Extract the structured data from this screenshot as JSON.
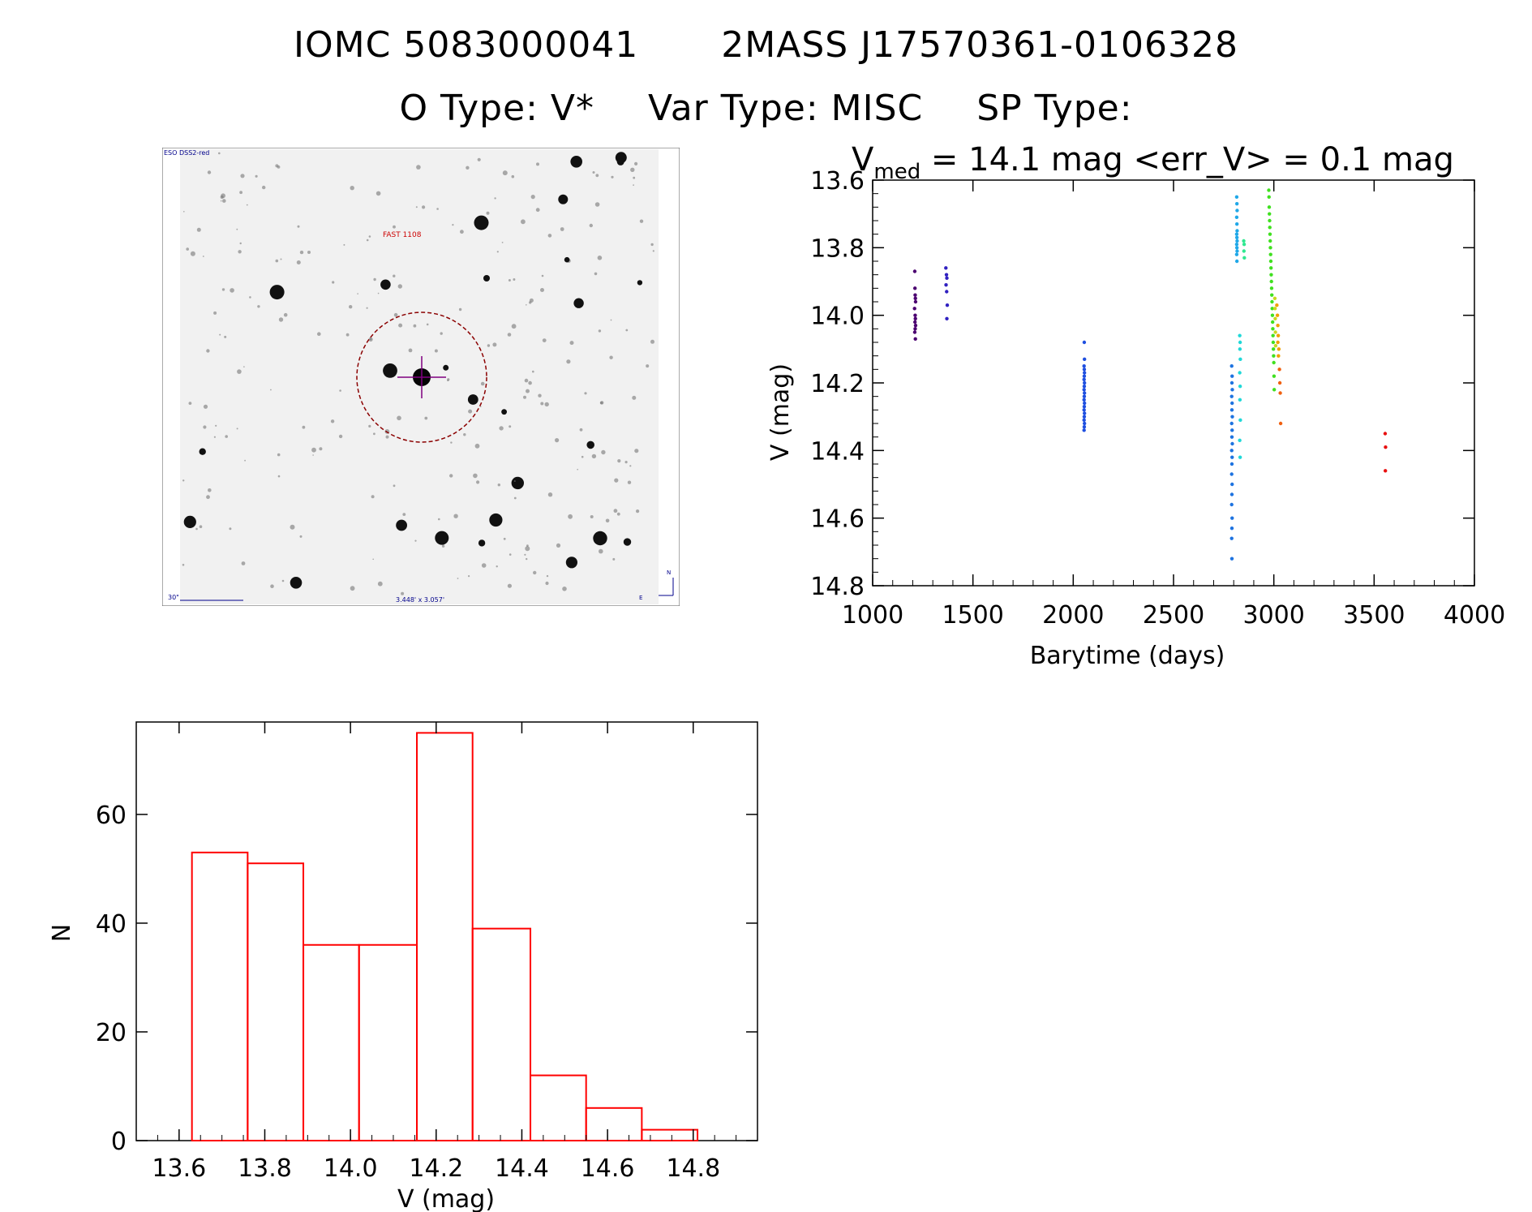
{
  "header": {
    "object_id": "IOMC 5083000041",
    "catalog_id": "2MASS J17570361-0106328",
    "object_type": "O Type: V*",
    "var_type": "Var Type: MISC",
    "sp_type": "SP Type:"
  },
  "image_panel": {
    "survey_label": "ESO DSS2-red",
    "source_label": "FAST 1108",
    "scale_label": "30\"",
    "size_label": "3.448' x 3.057'",
    "north_label": "N",
    "east_label": "E",
    "circle_color": "#8b0000",
    "cross_color": "#800080",
    "label_color": "#cc0000",
    "annot_color": "#00008b"
  },
  "chart_data": [
    {
      "type": "scatter",
      "title_v": "V",
      "title_sub": "med",
      "title_rest": " = 14.1 mag <err_V> = 0.1 mag",
      "xlabel": "Barytime (days)",
      "ylabel": "V (mag)",
      "xlim": [
        1000,
        4000
      ],
      "ylim": [
        14.8,
        13.6
      ],
      "xticks": [
        "1000",
        "1500",
        "2000",
        "2500",
        "3000",
        "3500",
        "4000"
      ],
      "yticks": [
        "13.6",
        "13.8",
        "14.0",
        "14.2",
        "14.4",
        "14.6",
        "14.8"
      ],
      "series": [
        {
          "color": "#4b0070",
          "x": [
            1210,
            1211,
            1212,
            1213,
            1214,
            1209,
            1212,
            1213,
            1211,
            1214,
            1212,
            1210,
            1213
          ],
          "y": [
            13.87,
            13.92,
            13.94,
            13.95,
            13.96,
            13.98,
            14.0,
            14.01,
            14.02,
            14.03,
            14.04,
            14.05,
            14.07
          ]
        },
        {
          "color": "#3020c0",
          "x": [
            1365,
            1368,
            1370,
            1366,
            1369,
            1372,
            1370
          ],
          "y": [
            13.86,
            13.88,
            13.89,
            13.91,
            13.93,
            13.97,
            14.01
          ]
        },
        {
          "color": "#1f4fe0",
          "x": [
            2055,
            2056,
            2054,
            2055,
            2056,
            2055,
            2054,
            2056,
            2055,
            2054,
            2056,
            2055,
            2054,
            2056,
            2055,
            2054,
            2056,
            2055,
            2054,
            2056,
            2055,
            2054
          ],
          "y": [
            14.08,
            14.13,
            14.15,
            14.16,
            14.17,
            14.18,
            14.19,
            14.2,
            14.21,
            14.22,
            14.23,
            14.24,
            14.25,
            14.26,
            14.27,
            14.28,
            14.29,
            14.3,
            14.31,
            14.32,
            14.33,
            14.34
          ]
        },
        {
          "color": "#1e73e0",
          "x": [
            2790,
            2792,
            2791,
            2793,
            2790,
            2792,
            2791,
            2793,
            2790,
            2792,
            2791,
            2793,
            2790,
            2792,
            2791,
            2790,
            2792,
            2791,
            2790,
            2792,
            2791,
            2790,
            2791
          ],
          "y": [
            14.15,
            14.18,
            14.2,
            14.22,
            14.24,
            14.26,
            14.28,
            14.3,
            14.32,
            14.34,
            14.36,
            14.38,
            14.4,
            14.42,
            14.44,
            14.47,
            14.5,
            14.53,
            14.56,
            14.6,
            14.63,
            14.66,
            14.72
          ]
        },
        {
          "color": "#20a8e8",
          "x": [
            2815,
            2816,
            2817,
            2815,
            2816,
            2817,
            2815,
            2816,
            2817,
            2815,
            2816,
            2817,
            2815,
            2816
          ],
          "y": [
            13.65,
            13.67,
            13.69,
            13.71,
            13.73,
            13.75,
            13.76,
            13.77,
            13.78,
            13.79,
            13.8,
            13.81,
            13.82,
            13.84
          ]
        },
        {
          "color": "#20d8d8",
          "x": [
            2830,
            2832,
            2831,
            2833,
            2830,
            2832,
            2831,
            2833,
            2830,
            2832
          ],
          "y": [
            14.06,
            14.08,
            14.1,
            14.13,
            14.17,
            14.21,
            14.25,
            14.31,
            14.37,
            14.42
          ]
        },
        {
          "color": "#30e890",
          "x": [
            2850,
            2852,
            2851,
            2853
          ],
          "y": [
            13.78,
            13.79,
            13.81,
            13.83
          ]
        },
        {
          "color": "#40e020",
          "x": [
            2975,
            2976,
            2977,
            2978,
            2979,
            2980,
            2981,
            2982,
            2983,
            2984,
            2985,
            2986,
            2987,
            2988,
            2989,
            2990,
            2991,
            2992,
            2993,
            2994,
            2995,
            2996,
            2997,
            2998,
            2999,
            3000,
            3001,
            3002
          ],
          "y": [
            13.63,
            13.65,
            13.68,
            13.7,
            13.72,
            13.74,
            13.76,
            13.78,
            13.8,
            13.82,
            13.84,
            13.86,
            13.88,
            13.9,
            13.92,
            13.94,
            13.96,
            13.98,
            14.0,
            14.02,
            14.04,
            14.06,
            14.08,
            14.1,
            14.12,
            14.14,
            14.18,
            14.22
          ]
        },
        {
          "color": "#c8d820",
          "x": [
            3005,
            3006,
            3007,
            3008,
            3009
          ],
          "y": [
            13.95,
            13.98,
            14.01,
            14.05,
            14.09
          ]
        },
        {
          "color": "#f0a000",
          "x": [
            3015,
            3018,
            3020,
            3022,
            3025,
            3020,
            3023
          ],
          "y": [
            13.97,
            14.0,
            14.03,
            14.06,
            14.1,
            14.08,
            14.12
          ]
        },
        {
          "color": "#f06010",
          "x": [
            3028,
            3030,
            3032,
            3034
          ],
          "y": [
            14.16,
            14.2,
            14.23,
            14.32
          ]
        },
        {
          "color": "#e81010",
          "x": [
            3555,
            3557,
            3556
          ],
          "y": [
            14.35,
            14.39,
            14.46
          ]
        }
      ]
    },
    {
      "type": "bar",
      "xlabel": "V (mag)",
      "ylabel": "N",
      "xlim": [
        13.5,
        14.95
      ],
      "ylim": [
        0,
        77
      ],
      "xticks": [
        "13.6",
        "13.8",
        "14.0",
        "14.2",
        "14.4",
        "14.6",
        "14.8"
      ],
      "yticks": [
        "0",
        "20",
        "40",
        "60"
      ],
      "bar_color": "#ff0000",
      "bin_edges": [
        13.63,
        13.76,
        13.89,
        14.02,
        14.155,
        14.285,
        14.42,
        14.55,
        14.68,
        14.81
      ],
      "values": [
        53,
        51,
        36,
        36,
        75,
        39,
        12,
        6,
        2
      ]
    }
  ]
}
